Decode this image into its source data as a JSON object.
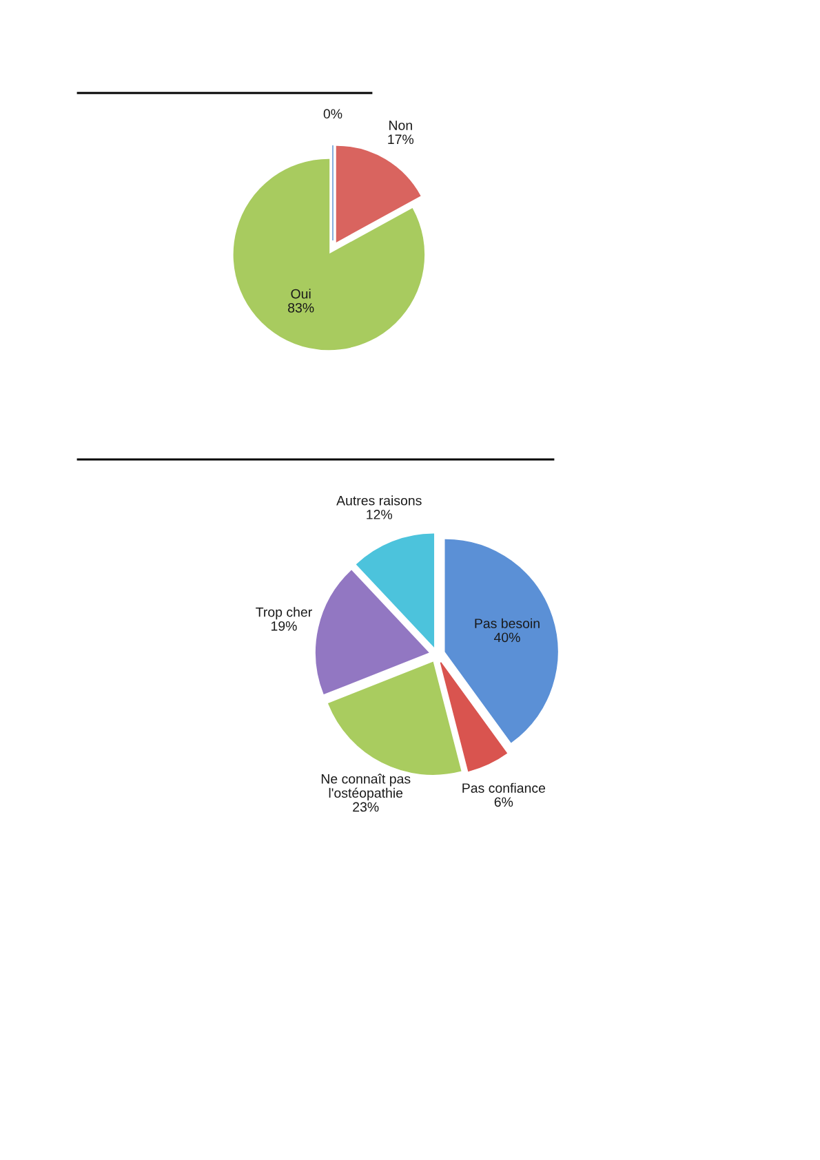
{
  "chart_data": [
    {
      "type": "pie",
      "categories": [
        null,
        "Non",
        "Oui"
      ],
      "values": [
        0,
        17,
        83
      ],
      "value_labels": [
        "0%",
        "17%",
        "83%"
      ],
      "colors": [
        "#6f9fd8",
        "#d9645f",
        "#a8cb5f"
      ]
    },
    {
      "type": "pie",
      "categories": [
        "Pas besoin",
        "Pas confiance",
        "Ne connaît pas\nl'ostéopathie",
        "Trop cher",
        "Autres raisons"
      ],
      "values": [
        40,
        6,
        23,
        19,
        12
      ],
      "value_labels": [
        "40%",
        "6%",
        "23%",
        "19%",
        "12%"
      ],
      "colors": [
        "#5b90d6",
        "#d9544f",
        "#a9cc5f",
        "#9277c2",
        "#4cc3dc"
      ]
    }
  ]
}
